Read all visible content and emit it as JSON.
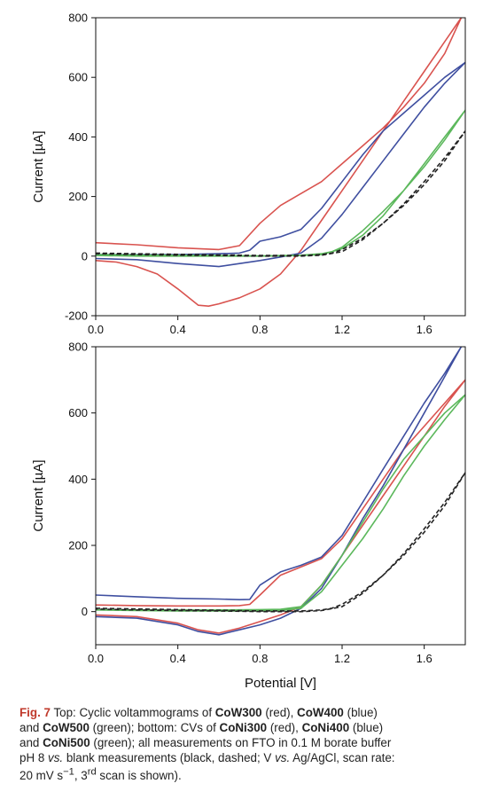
{
  "chart_data": [
    {
      "type": "line",
      "panel": "top",
      "xlabel": "",
      "ylabel": "Current [µA]",
      "xlim": [
        0.0,
        1.8
      ],
      "ylim": [
        -200,
        800
      ],
      "xticks": [
        "0.0",
        "0.4",
        "0.8",
        "1.2",
        "1.6"
      ],
      "yticks": [
        "-200",
        "0",
        "200",
        "400",
        "600",
        "800"
      ],
      "grid": false,
      "series": [
        {
          "color": "#d9534f",
          "dashed": false,
          "x": [
            0,
            0.2,
            0.4,
            0.6,
            0.7,
            0.8,
            0.9,
            1.0,
            1.1,
            1.2,
            1.3,
            1.4,
            1.5,
            1.6,
            1.7,
            1.78,
            1.7,
            1.6,
            1.5,
            1.4,
            1.3,
            1.2,
            1.1,
            1.0,
            0.9,
            0.8,
            0.7,
            0.6,
            0.55,
            0.5,
            0.4,
            0.3,
            0.2,
            0.1,
            0
          ],
          "y": [
            45,
            38,
            28,
            22,
            35,
            110,
            170,
            210,
            250,
            310,
            370,
            430,
            500,
            580,
            680,
            800,
            720,
            620,
            520,
            420,
            320,
            220,
            120,
            20,
            -60,
            -110,
            -140,
            -160,
            -168,
            -165,
            -110,
            -60,
            -35,
            -20,
            -15
          ]
        },
        {
          "color": "#3f4fa0",
          "dashed": false,
          "x": [
            0,
            0.2,
            0.4,
            0.6,
            0.7,
            0.75,
            0.8,
            0.9,
            1.0,
            1.1,
            1.2,
            1.3,
            1.4,
            1.5,
            1.6,
            1.7,
            1.8,
            1.7,
            1.6,
            1.5,
            1.4,
            1.3,
            1.2,
            1.1,
            1.0,
            0.9,
            0.8,
            0.7,
            0.6,
            0.4,
            0.2,
            0
          ],
          "y": [
            5,
            5,
            5,
            8,
            10,
            20,
            50,
            65,
            90,
            160,
            250,
            340,
            420,
            480,
            540,
            600,
            650,
            580,
            500,
            410,
            320,
            230,
            140,
            60,
            10,
            -3,
            -15,
            -25,
            -35,
            -25,
            -12,
            -8
          ]
        },
        {
          "color": "#5cb85c",
          "dashed": false,
          "x": [
            0,
            0.2,
            0.4,
            0.6,
            0.8,
            1.0,
            1.1,
            1.15,
            1.2,
            1.3,
            1.4,
            1.5,
            1.6,
            1.7,
            1.8,
            1.7,
            1.6,
            1.5,
            1.4,
            1.3,
            1.2,
            1.1,
            1.0,
            0.8,
            0.6,
            0.4,
            0.2,
            0
          ],
          "y": [
            5,
            4,
            3,
            2,
            1,
            3,
            8,
            15,
            30,
            85,
            150,
            220,
            300,
            390,
            490,
            400,
            310,
            220,
            135,
            70,
            25,
            5,
            2,
            0,
            0,
            0,
            0,
            2
          ]
        },
        {
          "color": "#222222",
          "dashed": true,
          "x": [
            0,
            0.2,
            0.4,
            0.6,
            0.8,
            1.0,
            1.1,
            1.15,
            1.2,
            1.3,
            1.4,
            1.5,
            1.6,
            1.7,
            1.8,
            1.7,
            1.6,
            1.5,
            1.4,
            1.3,
            1.2,
            1.1,
            1.0,
            0.8,
            0.6,
            0.4,
            0.2,
            0
          ],
          "y": [
            10,
            8,
            6,
            4,
            2,
            2,
            5,
            10,
            22,
            60,
            110,
            170,
            240,
            320,
            420,
            330,
            250,
            175,
            110,
            55,
            15,
            3,
            0,
            0,
            2,
            3,
            5,
            8
          ]
        }
      ]
    },
    {
      "type": "line",
      "panel": "bottom",
      "xlabel": "Potential [V]",
      "ylabel": "Current [µA]",
      "xlim": [
        0.0,
        1.8
      ],
      "ylim": [
        -100,
        800
      ],
      "xticks": [
        "0.0",
        "0.4",
        "0.8",
        "1.2",
        "1.6"
      ],
      "yticks": [
        "0",
        "200",
        "400",
        "600",
        "800"
      ],
      "grid": false,
      "series": [
        {
          "color": "#d9534f",
          "dashed": false,
          "x": [
            0,
            0.2,
            0.4,
            0.6,
            0.7,
            0.75,
            0.8,
            0.9,
            1.0,
            1.1,
            1.2,
            1.3,
            1.4,
            1.5,
            1.6,
            1.7,
            1.8,
            1.7,
            1.6,
            1.5,
            1.4,
            1.3,
            1.2,
            1.1,
            1.0,
            0.9,
            0.8,
            0.7,
            0.6,
            0.5,
            0.4,
            0.2,
            0
          ],
          "y": [
            20,
            18,
            17,
            17,
            18,
            22,
            50,
            110,
            135,
            160,
            220,
            310,
            400,
            490,
            560,
            630,
            700,
            620,
            530,
            440,
            350,
            260,
            170,
            80,
            15,
            -10,
            -30,
            -50,
            -65,
            -55,
            -35,
            -15,
            -10
          ]
        },
        {
          "color": "#3f4fa0",
          "dashed": false,
          "x": [
            0,
            0.2,
            0.4,
            0.6,
            0.7,
            0.75,
            0.8,
            0.9,
            1.0,
            1.1,
            1.2,
            1.3,
            1.4,
            1.5,
            1.6,
            1.7,
            1.78,
            1.7,
            1.6,
            1.5,
            1.4,
            1.3,
            1.2,
            1.1,
            1.0,
            0.9,
            0.8,
            0.7,
            0.6,
            0.5,
            0.4,
            0.2,
            0
          ],
          "y": [
            50,
            45,
            40,
            38,
            36,
            37,
            80,
            120,
            140,
            165,
            230,
            330,
            430,
            530,
            630,
            720,
            800,
            710,
            600,
            490,
            380,
            280,
            170,
            70,
            10,
            -20,
            -40,
            -55,
            -70,
            -60,
            -40,
            -20,
            -15
          ]
        },
        {
          "color": "#5cb85c",
          "dashed": false,
          "x": [
            0,
            0.2,
            0.4,
            0.6,
            0.8,
            0.9,
            1.0,
            1.1,
            1.2,
            1.3,
            1.4,
            1.5,
            1.6,
            1.7,
            1.8,
            1.7,
            1.6,
            1.5,
            1.4,
            1.3,
            1.2,
            1.1,
            1.0,
            0.9,
            0.8,
            0.6,
            0.4,
            0.2,
            0
          ],
          "y": [
            5,
            5,
            5,
            5,
            6,
            7,
            15,
            80,
            170,
            270,
            370,
            460,
            530,
            600,
            655,
            580,
            500,
            410,
            310,
            220,
            140,
            60,
            10,
            3,
            2,
            2,
            2,
            3,
            5
          ]
        },
        {
          "color": "#222222",
          "dashed": true,
          "x": [
            0,
            0.2,
            0.4,
            0.6,
            0.8,
            1.0,
            1.1,
            1.15,
            1.2,
            1.3,
            1.4,
            1.5,
            1.6,
            1.7,
            1.8,
            1.7,
            1.6,
            1.5,
            1.4,
            1.3,
            1.2,
            1.1,
            1.0,
            0.8,
            0.6,
            0.4,
            0.2,
            0
          ],
          "y": [
            10,
            8,
            6,
            4,
            2,
            2,
            5,
            10,
            22,
            60,
            110,
            170,
            240,
            320,
            420,
            330,
            250,
            175,
            110,
            55,
            15,
            3,
            0,
            0,
            2,
            3,
            5,
            8
          ]
        }
      ]
    }
  ],
  "caption": {
    "fig": "Fig. 7",
    "lines": [
      [
        {
          "t": "Top: Cyclic voltammograms of ",
          "b": false
        },
        {
          "t": "CoW300",
          "b": true
        },
        {
          "t": " (red), ",
          "b": false
        },
        {
          "t": "CoW400",
          "b": true
        },
        {
          "t": " (blue)",
          "b": false
        }
      ],
      [
        {
          "t": "and ",
          "b": false
        },
        {
          "t": "CoW500",
          "b": true
        },
        {
          "t": " (green); bottom: CVs of ",
          "b": false
        },
        {
          "t": "CoNi300",
          "b": true
        },
        {
          "t": " (red), ",
          "b": false
        },
        {
          "t": "CoNi400",
          "b": true
        },
        {
          "t": " (blue)",
          "b": false
        }
      ],
      [
        {
          "t": "and ",
          "b": false
        },
        {
          "t": "CoNi500",
          "b": true
        },
        {
          "t": " (green); all measurements on FTO in 0.1 M borate buffer",
          "b": false
        }
      ],
      [
        {
          "t": "pH 8 ",
          "b": false
        },
        {
          "t": "vs.",
          "b": false,
          "i": true
        },
        {
          "t": " blank measurements (black, dashed; V ",
          "b": false
        },
        {
          "t": "vs.",
          "b": false,
          "i": true
        },
        {
          "t": " Ag/AgCl, scan rate:",
          "b": false
        }
      ],
      [
        {
          "t": "20 mV s",
          "b": false
        },
        {
          "t": "−1",
          "b": false,
          "sup": true
        },
        {
          "t": ", 3",
          "b": false
        },
        {
          "t": "rd",
          "b": false,
          "sup": true
        },
        {
          "t": " scan is shown).",
          "b": false
        }
      ]
    ]
  }
}
